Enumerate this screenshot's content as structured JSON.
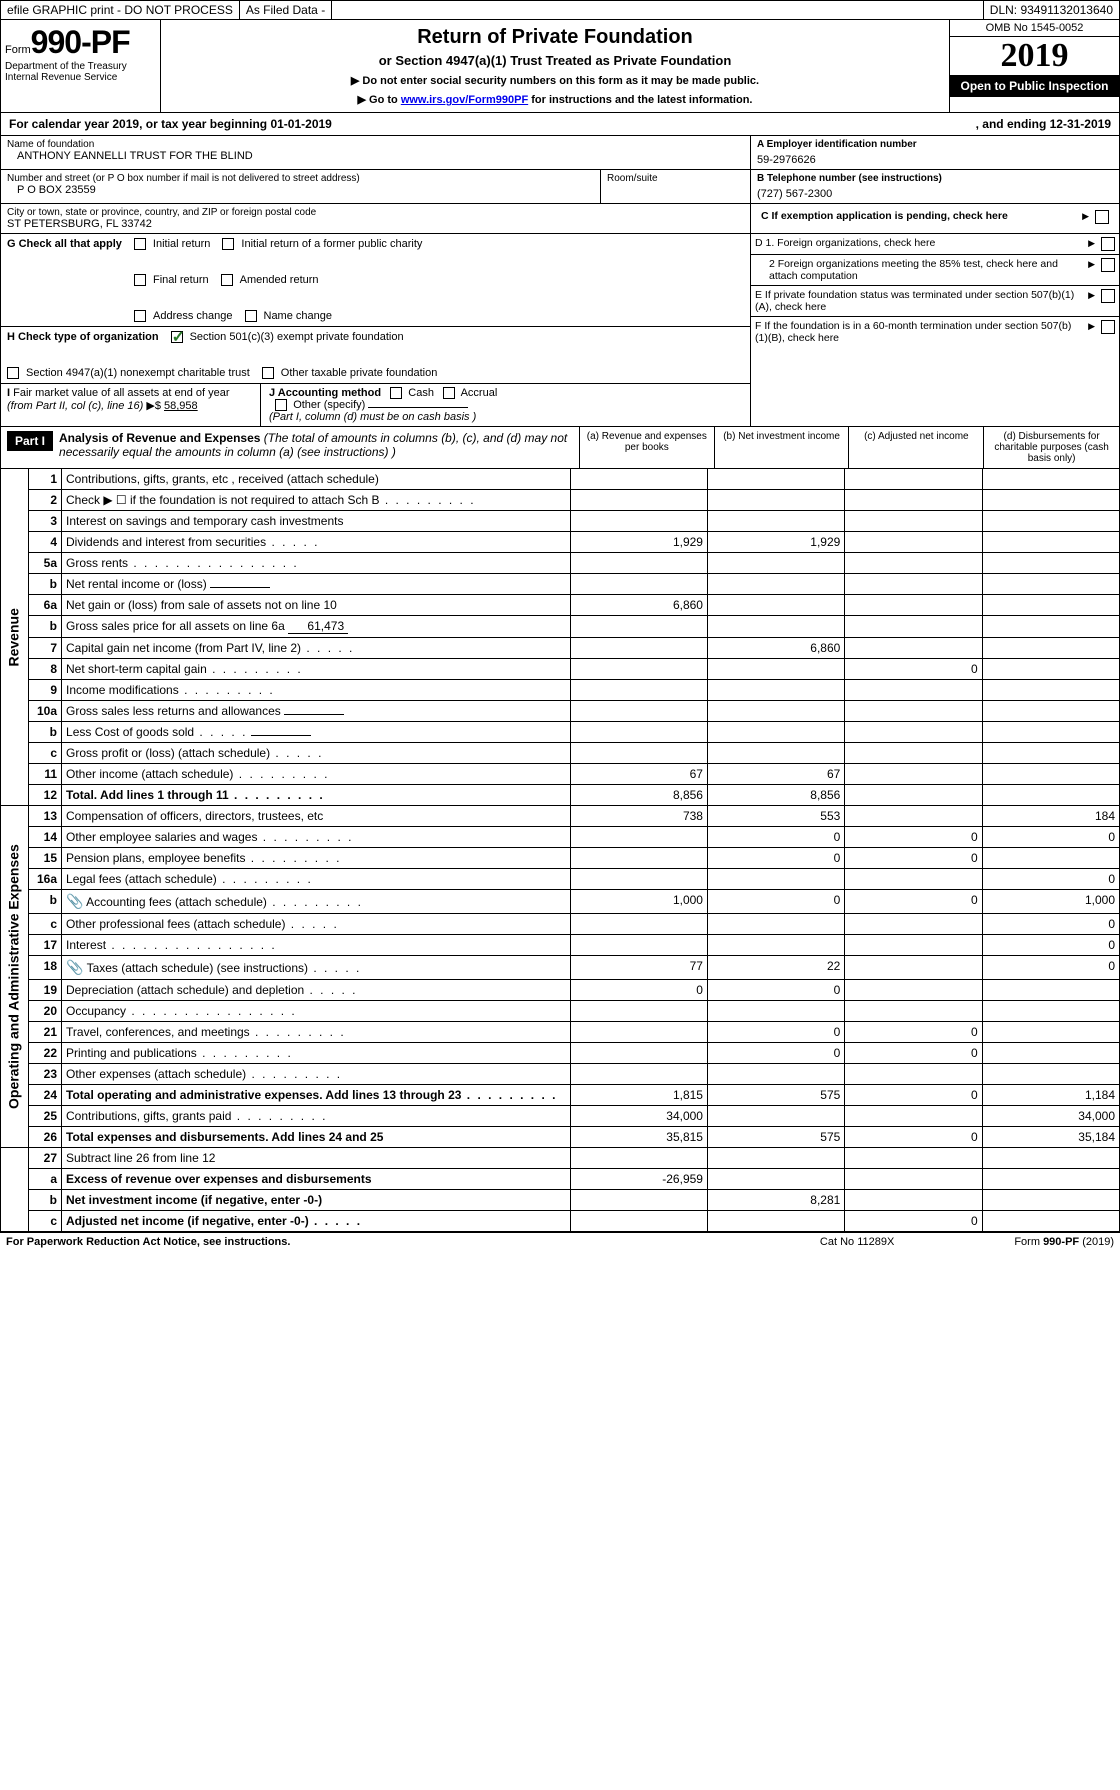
{
  "topbar": {
    "efile": "efile GRAPHIC print - DO NOT PROCESS",
    "asfiled": "As Filed Data -",
    "dln": "DLN: 93491132013640"
  },
  "header": {
    "form_prefix": "Form",
    "form_no": "990-PF",
    "dept1": "Department of the Treasury",
    "dept2": "Internal Revenue Service",
    "title": "Return of Private Foundation",
    "subtitle": "or Section 4947(a)(1) Trust Treated as Private Foundation",
    "note1": "▶ Do not enter social security numbers on this form as it may be made public.",
    "note2_pre": "▶ Go to ",
    "note2_link": "www.irs.gov/Form990PF",
    "note2_post": " for instructions and the latest information.",
    "omb": "OMB No 1545-0052",
    "year": "2019",
    "open": "Open to Public Inspection"
  },
  "calyear": {
    "prefix": "For calendar year 2019, or tax year beginning ",
    "begin": "01-01-2019",
    "mid": " , and ending ",
    "end": "12-31-2019"
  },
  "info": {
    "name_lbl": "Name of foundation",
    "name": "ANTHONY EANNELLI TRUST FOR THE BLIND",
    "addr_lbl": "Number and street (or P O  box number if mail is not delivered to street address)",
    "addr": "P O BOX 23559",
    "room_lbl": "Room/suite",
    "city_lbl": "City or town, state or province, country, and ZIP or foreign postal code",
    "city": "ST PETERSBURG, FL  33742",
    "a_lbl": "A Employer identification number",
    "ein": "59-2976626",
    "b_lbl": "B Telephone number (see instructions)",
    "phone": "(727) 567-2300",
    "c_lbl": "C If exemption application is pending, check here",
    "g_lbl": "G Check all that apply",
    "g_opts": [
      "Initial return",
      "Initial return of a former public charity",
      "Final return",
      "Amended return",
      "Address change",
      "Name change"
    ],
    "h_lbl": "H Check type of organization",
    "h1": "Section 501(c)(3) exempt private foundation",
    "h2": "Section 4947(a)(1) nonexempt charitable trust",
    "h3": "Other taxable private foundation",
    "i_lbl": "I Fair market value of all assets at end of year (from Part II, col  (c), line 16) ▶$",
    "i_val": "58,958",
    "j_lbl": "J Accounting method",
    "j_cash": "Cash",
    "j_accrual": "Accrual",
    "j_other": "Other (specify)",
    "j_note": "(Part I, column (d) must be on cash basis )",
    "d1": "D 1. Foreign organizations, check here",
    "d2": "2  Foreign organizations meeting the 85% test, check here and attach computation",
    "e": "E  If private foundation status was terminated under section 507(b)(1)(A), check here",
    "f": "F  If the foundation is in a 60-month termination under section 507(b)(1)(B), check here"
  },
  "part1": {
    "label": "Part I",
    "title": "Analysis of Revenue and Expenses",
    "title_note": " (The total of amounts in columns (b), (c), and (d) may not necessarily equal the amounts in column (a) (see instructions) )",
    "cols": {
      "a": "(a) Revenue and expenses per books",
      "b": "(b) Net investment income",
      "c": "(c) Adjusted net income",
      "d": "(d) Disbursements for charitable purposes (cash basis only)"
    }
  },
  "sections": {
    "revenue": "Revenue",
    "expenses": "Operating and Administrative Expenses"
  },
  "lines": [
    {
      "n": "1",
      "d": "Contributions, gifts, grants, etc , received (attach schedule)",
      "a": "",
      "b": "",
      "c": "",
      "dd": ""
    },
    {
      "n": "2",
      "d": "Check ▶ ☐ if the foundation is not required to attach Sch B",
      "dots": "m",
      "a": "",
      "b": "",
      "c": "",
      "dd": ""
    },
    {
      "n": "3",
      "d": "Interest on savings and temporary cash investments",
      "a": "",
      "b": "",
      "c": "",
      "dd": ""
    },
    {
      "n": "4",
      "d": "Dividends and interest from securities",
      "dots": "s",
      "a": "1,929",
      "b": "1,929",
      "c": "",
      "dd": ""
    },
    {
      "n": "5a",
      "d": "Gross rents",
      "dots": "l",
      "a": "",
      "b": "",
      "c": "",
      "dd": ""
    },
    {
      "n": "b",
      "d": "Net rental income or (loss)",
      "inline": "",
      "a": "",
      "b": "",
      "c": "",
      "dd": ""
    },
    {
      "n": "6a",
      "d": "Net gain or (loss) from sale of assets not on line 10",
      "a": "6,860",
      "b": "",
      "c": "",
      "dd": ""
    },
    {
      "n": "b",
      "d": "Gross sales price for all assets on line 6a",
      "inline": "61,473",
      "a": "",
      "b": "",
      "c": "",
      "dd": ""
    },
    {
      "n": "7",
      "d": "Capital gain net income (from Part IV, line 2)",
      "dots": "s",
      "a": "",
      "b": "6,860",
      "c": "",
      "dd": ""
    },
    {
      "n": "8",
      "d": "Net short-term capital gain",
      "dots": "m",
      "a": "",
      "b": "",
      "c": "0",
      "dd": ""
    },
    {
      "n": "9",
      "d": "Income modifications",
      "dots": "m",
      "a": "",
      "b": "",
      "c": "",
      "dd": ""
    },
    {
      "n": "10a",
      "d": "Gross sales less returns and allowances",
      "inline": "",
      "a": "",
      "b": "",
      "c": "",
      "dd": ""
    },
    {
      "n": "b",
      "d": "Less  Cost of goods sold",
      "dots": "s",
      "inline": "",
      "a": "",
      "b": "",
      "c": "",
      "dd": ""
    },
    {
      "n": "c",
      "d": "Gross profit or (loss) (attach schedule)",
      "dots": "s",
      "a": "",
      "b": "",
      "c": "",
      "dd": ""
    },
    {
      "n": "11",
      "d": "Other income (attach schedule)",
      "dots": "m",
      "a": "67",
      "b": "67",
      "c": "",
      "dd": ""
    },
    {
      "n": "12",
      "d": "Total. Add lines 1 through 11",
      "dots": "m",
      "bold": true,
      "a": "8,856",
      "b": "8,856",
      "c": "",
      "dd": ""
    }
  ],
  "exp_lines": [
    {
      "n": "13",
      "d": "Compensation of officers, directors, trustees, etc",
      "a": "738",
      "b": "553",
      "c": "",
      "dd": "184"
    },
    {
      "n": "14",
      "d": "Other employee salaries and wages",
      "dots": "m",
      "a": "",
      "b": "0",
      "c": "0",
      "dd": "0"
    },
    {
      "n": "15",
      "d": "Pension plans, employee benefits",
      "dots": "m",
      "a": "",
      "b": "0",
      "c": "0",
      "dd": ""
    },
    {
      "n": "16a",
      "d": "Legal fees (attach schedule)",
      "dots": "m",
      "a": "",
      "b": "",
      "c": "",
      "dd": "0"
    },
    {
      "n": "b",
      "d": "Accounting fees (attach schedule)",
      "dots": "m",
      "icon": true,
      "a": "1,000",
      "b": "0",
      "c": "0",
      "dd": "1,000"
    },
    {
      "n": "c",
      "d": "Other professional fees (attach schedule)",
      "dots": "s",
      "a": "",
      "b": "",
      "c": "",
      "dd": "0"
    },
    {
      "n": "17",
      "d": "Interest",
      "dots": "l",
      "a": "",
      "b": "",
      "c": "",
      "dd": "0"
    },
    {
      "n": "18",
      "d": "Taxes (attach schedule) (see instructions)",
      "dots": "s",
      "icon": true,
      "a": "77",
      "b": "22",
      "c": "",
      "dd": "0"
    },
    {
      "n": "19",
      "d": "Depreciation (attach schedule) and depletion",
      "dots": "s",
      "a": "0",
      "b": "0",
      "c": "",
      "dd": ""
    },
    {
      "n": "20",
      "d": "Occupancy",
      "dots": "l",
      "a": "",
      "b": "",
      "c": "",
      "dd": ""
    },
    {
      "n": "21",
      "d": "Travel, conferences, and meetings",
      "dots": "m",
      "a": "",
      "b": "0",
      "c": "0",
      "dd": ""
    },
    {
      "n": "22",
      "d": "Printing and publications",
      "dots": "m",
      "a": "",
      "b": "0",
      "c": "0",
      "dd": ""
    },
    {
      "n": "23",
      "d": "Other expenses (attach schedule)",
      "dots": "m",
      "a": "",
      "b": "",
      "c": "",
      "dd": ""
    },
    {
      "n": "24",
      "d": "Total operating and administrative expenses. Add lines 13 through 23",
      "dots": "m",
      "bold": true,
      "a": "1,815",
      "b": "575",
      "c": "0",
      "dd": "1,184"
    },
    {
      "n": "25",
      "d": "Contributions, gifts, grants paid",
      "dots": "m",
      "a": "34,000",
      "b": "",
      "c": "",
      "dd": "34,000"
    },
    {
      "n": "26",
      "d": "Total expenses and disbursements. Add lines 24 and 25",
      "bold": true,
      "a": "35,815",
      "b": "575",
      "c": "0",
      "dd": "35,184"
    }
  ],
  "bottom_lines": [
    {
      "n": "27",
      "d": "Subtract line 26 from line 12",
      "a": "",
      "b": "",
      "c": "",
      "dd": ""
    },
    {
      "n": "a",
      "d": "Excess of revenue over expenses and disbursements",
      "bold": true,
      "a": "-26,959",
      "b": "",
      "c": "",
      "dd": ""
    },
    {
      "n": "b",
      "d": "Net investment income (if negative, enter -0-)",
      "bold": true,
      "a": "",
      "b": "8,281",
      "c": "",
      "dd": ""
    },
    {
      "n": "c",
      "d": "Adjusted net income (if negative, enter -0-)",
      "dots": "s",
      "bold": true,
      "a": "",
      "b": "",
      "c": "0",
      "dd": ""
    }
  ],
  "footer": {
    "left": "For Paperwork Reduction Act Notice, see instructions.",
    "mid": "Cat  No  11289X",
    "right": "Form 990-PF (2019)"
  }
}
